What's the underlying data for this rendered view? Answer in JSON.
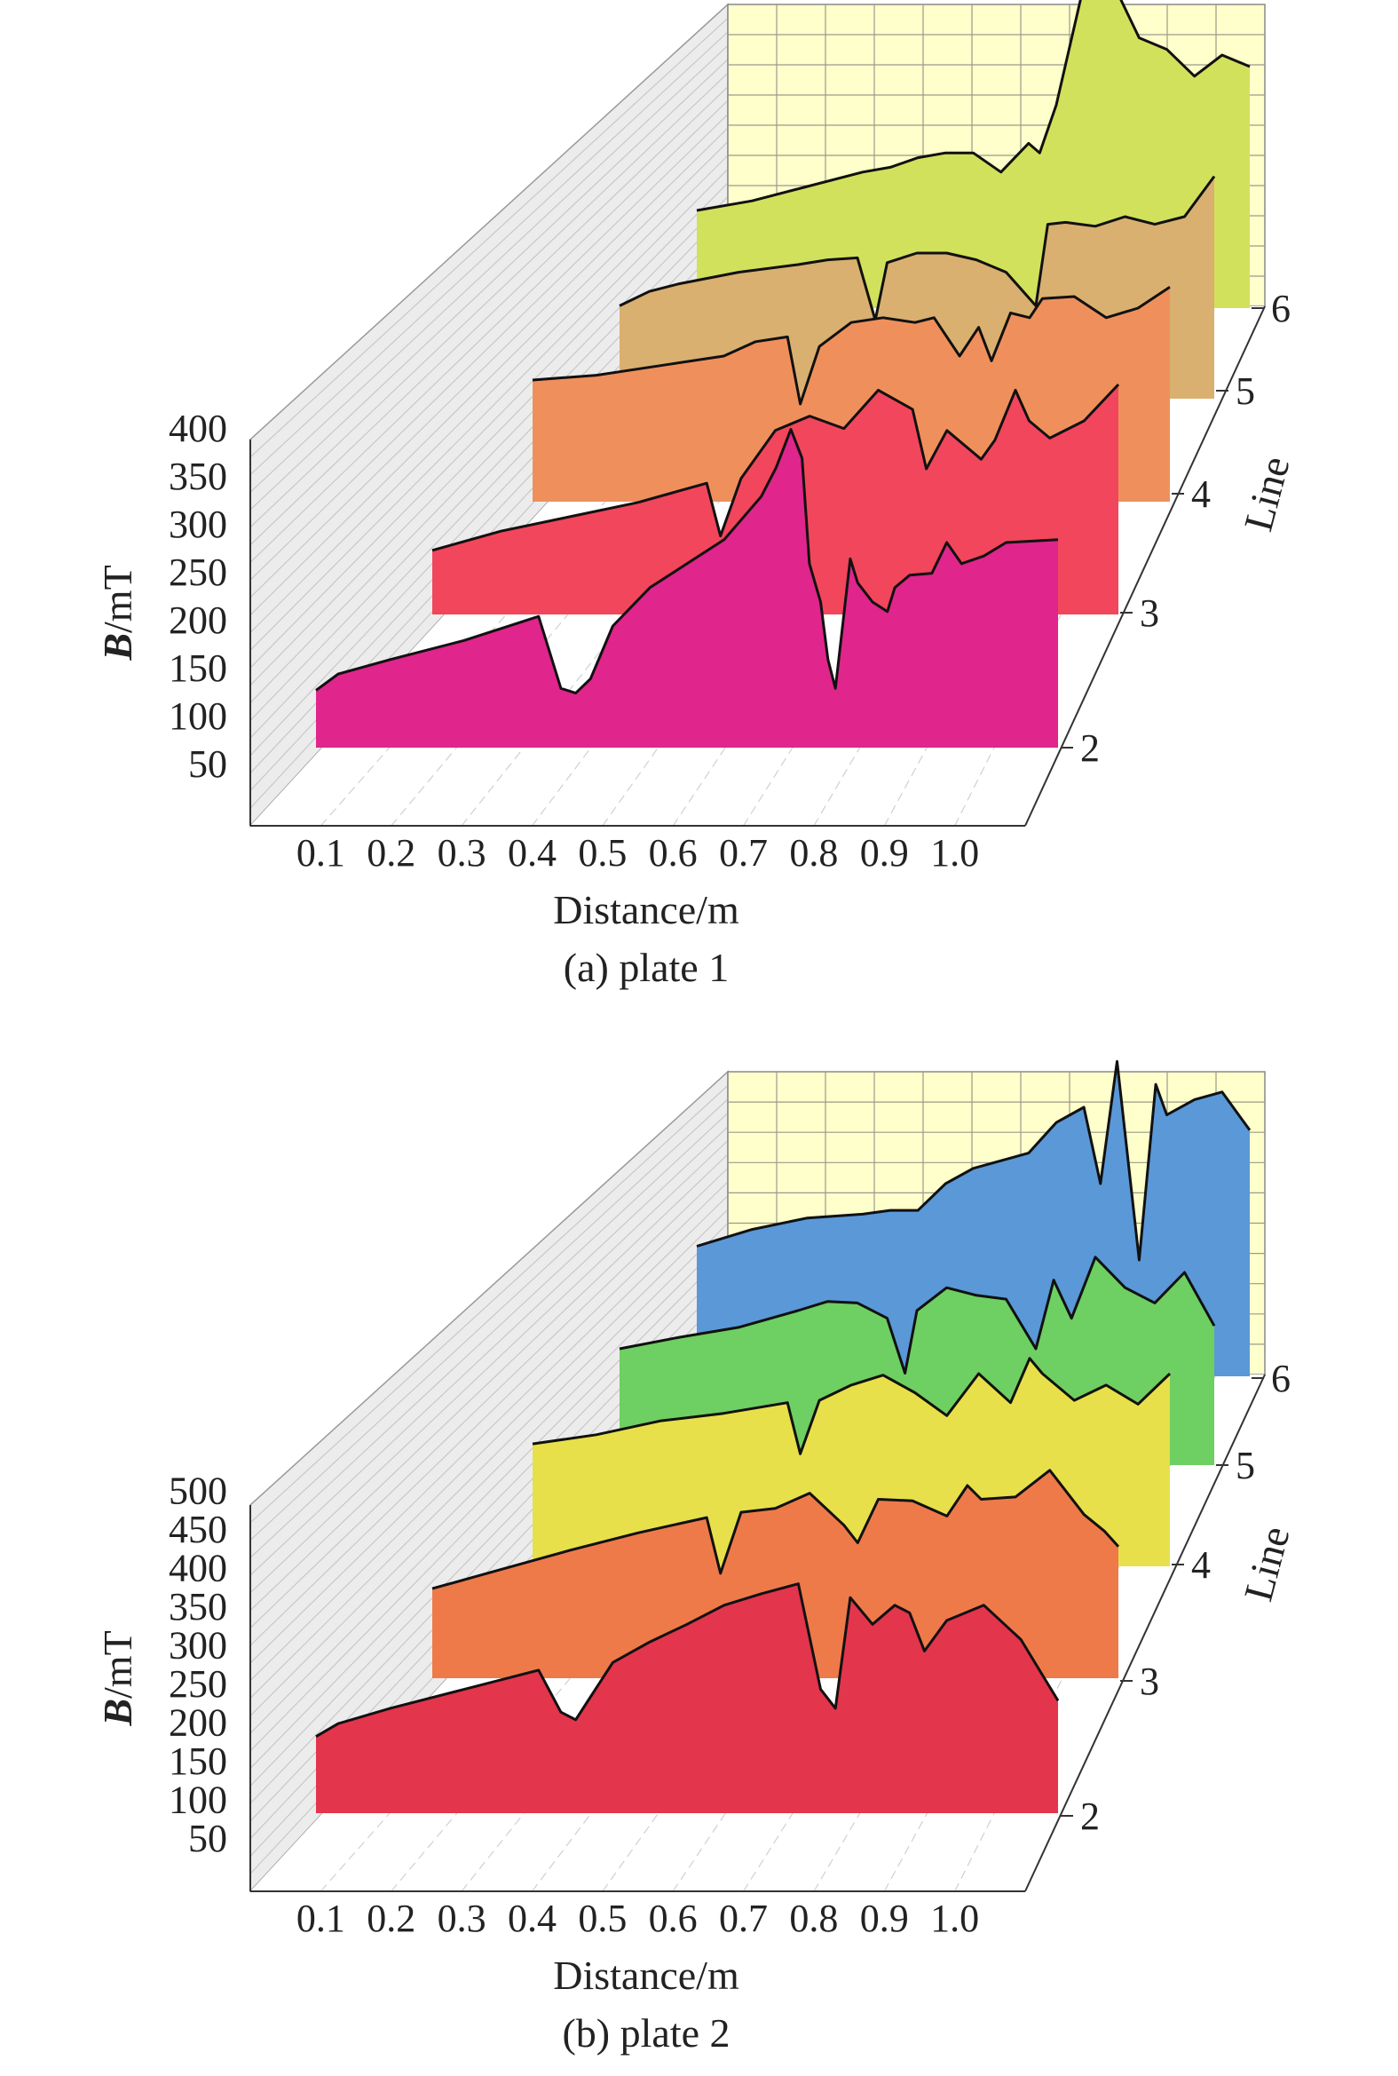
{
  "figure": {
    "panels": [
      {
        "caption": "(a) plate 1"
      },
      {
        "caption": "(b) plate 2"
      }
    ]
  },
  "chart_data": [
    {
      "type": "area",
      "subtype": "3d-waterfall",
      "caption": "(a) plate 1",
      "xlabel": "Distance/m",
      "ylabel_bold": "B",
      "ylabel_rest": "/mT",
      "zlabel": "Line",
      "xticks": [
        "0.1",
        "0.2",
        "0.3",
        "0.4",
        "0.5",
        "0.6",
        "0.7",
        "0.8",
        "0.9",
        "1.0"
      ],
      "yticks": [
        "50",
        "100",
        "150",
        "200",
        "250",
        "300",
        "350",
        "400"
      ],
      "zticks": [
        "2",
        "3",
        "4",
        "5",
        "6"
      ],
      "xlim": [
        0.0,
        1.1
      ],
      "ylim": [
        0,
        420
      ],
      "back_wall_color": "#ffffcc",
      "series": [
        {
          "line": "2",
          "color": "#e0258c",
          "x": [
            0.1,
            0.13,
            0.2,
            0.3,
            0.4,
            0.43,
            0.45,
            0.47,
            0.5,
            0.55,
            0.6,
            0.65,
            0.7,
            0.72,
            0.74,
            0.755,
            0.765,
            0.78,
            0.79,
            0.8,
            0.82,
            0.83,
            0.85,
            0.87,
            0.88,
            0.9,
            0.93,
            0.95,
            0.97,
            1.0,
            1.03,
            1.1
          ],
          "y": [
            108,
            125,
            140,
            160,
            185,
            110,
            105,
            120,
            175,
            215,
            240,
            265,
            310,
            340,
            380,
            350,
            240,
            200,
            140,
            110,
            245,
            220,
            200,
            190,
            215,
            228,
            230,
            262,
            240,
            248,
            262,
            265
          ]
        },
        {
          "line": "3",
          "color": "#f2465c",
          "x": [
            0.1,
            0.2,
            0.3,
            0.4,
            0.45,
            0.5,
            0.52,
            0.55,
            0.6,
            0.65,
            0.7,
            0.75,
            0.8,
            0.82,
            0.85,
            0.9,
            0.92,
            0.95,
            0.97,
            1.0,
            1.05,
            1.1
          ],
          "y": [
            115,
            135,
            150,
            165,
            175,
            185,
            130,
            190,
            240,
            255,
            242,
            282,
            262,
            200,
            240,
            210,
            230,
            282,
            250,
            232,
            250,
            288
          ]
        },
        {
          "line": "4",
          "color": "#ef905c",
          "x": [
            0.1,
            0.2,
            0.3,
            0.4,
            0.45,
            0.5,
            0.52,
            0.55,
            0.6,
            0.65,
            0.7,
            0.73,
            0.77,
            0.8,
            0.82,
            0.85,
            0.88,
            0.9,
            0.95,
            1.0,
            1.05,
            1.1
          ],
          "y": [
            175,
            180,
            190,
            200,
            215,
            220,
            150,
            210,
            235,
            240,
            235,
            240,
            200,
            230,
            195,
            245,
            240,
            260,
            262,
            240,
            250,
            272
          ]
        },
        {
          "line": "5",
          "color": "#d9b06f",
          "x": [
            0.1,
            0.15,
            0.2,
            0.3,
            0.4,
            0.45,
            0.5,
            0.53,
            0.55,
            0.6,
            0.65,
            0.7,
            0.75,
            0.8,
            0.82,
            0.85,
            0.9,
            0.95,
            1.0,
            1.05,
            1.1
          ],
          "y": [
            145,
            160,
            168,
            180,
            188,
            193,
            195,
            130,
            190,
            200,
            200,
            193,
            180,
            145,
            230,
            232,
            228,
            238,
            230,
            238,
            280
          ]
        },
        {
          "line": "6",
          "color": "#d2e15c",
          "x": [
            0.1,
            0.2,
            0.3,
            0.4,
            0.45,
            0.5,
            0.55,
            0.6,
            0.65,
            0.7,
            0.72,
            0.75,
            0.8,
            0.85,
            0.9,
            0.95,
            1.0,
            1.05,
            1.1
          ],
          "y": [
            150,
            160,
            175,
            190,
            195,
            205,
            210,
            210,
            190,
            220,
            210,
            260,
            385,
            390,
            330,
            318,
            290,
            312,
            300
          ]
        }
      ]
    },
    {
      "type": "area",
      "subtype": "3d-waterfall",
      "caption": "(b) plate 2",
      "xlabel": "Distance/m",
      "ylabel_bold": "B",
      "ylabel_rest": "/mT",
      "zlabel": "Line",
      "xticks": [
        "0.1",
        "0.2",
        "0.3",
        "0.4",
        "0.5",
        "0.6",
        "0.7",
        "0.8",
        "0.9",
        "1.0"
      ],
      "yticks": [
        "50",
        "100",
        "150",
        "200",
        "250",
        "300",
        "350",
        "400",
        "450",
        "500"
      ],
      "zticks": [
        "2",
        "3",
        "4",
        "5",
        "6"
      ],
      "xlim": [
        0.0,
        1.1
      ],
      "ylim": [
        0,
        520
      ],
      "back_wall_color": "#ffffcc",
      "series": [
        {
          "line": "2",
          "color": "#e3354c",
          "x": [
            0.1,
            0.13,
            0.2,
            0.3,
            0.4,
            0.43,
            0.45,
            0.47,
            0.5,
            0.55,
            0.6,
            0.65,
            0.7,
            0.75,
            0.78,
            0.8,
            0.82,
            0.85,
            0.88,
            0.9,
            0.92,
            0.95,
            1.0,
            1.05,
            1.1
          ],
          "y": [
            148,
            165,
            185,
            210,
            235,
            180,
            170,
            200,
            245,
            272,
            295,
            320,
            335,
            348,
            210,
            185,
            330,
            295,
            320,
            310,
            260,
            300,
            320,
            275,
            195
          ]
        },
        {
          "line": "3",
          "color": "#ee7a4a",
          "x": [
            0.1,
            0.2,
            0.3,
            0.4,
            0.45,
            0.5,
            0.52,
            0.55,
            0.6,
            0.65,
            0.7,
            0.72,
            0.75,
            0.8,
            0.85,
            0.88,
            0.9,
            0.95,
            1.0,
            1.05,
            1.08,
            1.1
          ],
          "y": [
            165,
            190,
            215,
            238,
            248,
            258,
            185,
            265,
            270,
            290,
            248,
            225,
            282,
            280,
            260,
            300,
            282,
            285,
            320,
            262,
            240,
            220
          ]
        },
        {
          "line": "4",
          "color": "#e7e04a",
          "x": [
            0.1,
            0.2,
            0.3,
            0.4,
            0.45,
            0.5,
            0.52,
            0.55,
            0.6,
            0.65,
            0.7,
            0.75,
            0.8,
            0.85,
            0.88,
            0.9,
            0.95,
            1.0,
            1.05,
            1.1
          ],
          "y": [
            208,
            220,
            238,
            248,
            255,
            262,
            195,
            265,
            285,
            298,
            275,
            245,
            300,
            262,
            320,
            300,
            265,
            285,
            260,
            300
          ]
        },
        {
          "line": "5",
          "color": "#6ecf62",
          "x": [
            0.1,
            0.2,
            0.3,
            0.4,
            0.45,
            0.5,
            0.55,
            0.58,
            0.6,
            0.65,
            0.7,
            0.75,
            0.8,
            0.83,
            0.86,
            0.9,
            0.95,
            1.0,
            1.05,
            1.1
          ],
          "y": [
            200,
            215,
            228,
            250,
            262,
            260,
            240,
            168,
            250,
            280,
            270,
            265,
            200,
            290,
            240,
            320,
            280,
            260,
            300,
            230
          ]
        },
        {
          "line": "6",
          "color": "#5a98d8",
          "x": [
            0.1,
            0.2,
            0.3,
            0.4,
            0.45,
            0.5,
            0.55,
            0.6,
            0.65,
            0.7,
            0.75,
            0.8,
            0.83,
            0.86,
            0.9,
            0.93,
            0.95,
            1.0,
            1.05,
            1.1
          ],
          "y": [
            218,
            240,
            255,
            260,
            265,
            265,
            300,
            320,
            330,
            340,
            380,
            400,
            300,
            460,
            200,
            430,
            390,
            410,
            420,
            370
          ]
        }
      ]
    }
  ]
}
